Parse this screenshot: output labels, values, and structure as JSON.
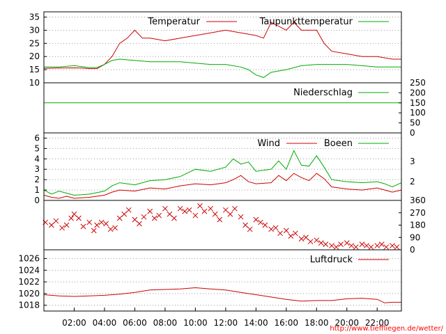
{
  "credit": "http://www.tiefflie­gen.de/wetter/",
  "colors": {
    "red": "#cc0000",
    "green": "#00aa00",
    "grid": "#999999",
    "credit": "#ff0000"
  },
  "x_axis": {
    "ticks": [
      "02:00",
      "04:00",
      "06:00",
      "08:00",
      "10:00",
      "12:00",
      "14:00",
      "16:00",
      "18:00",
      "20:00",
      "22:00"
    ],
    "range": [
      0.0,
      23.6
    ]
  },
  "chart_data": [
    {
      "type": "line",
      "id": "temperature",
      "ylim": [
        10,
        37
      ],
      "y_ticks": [
        "10",
        "15",
        "20",
        "25",
        "30",
        "35"
      ],
      "series": [
        {
          "name": "Temperatur",
          "color": "#cc0000",
          "x": [
            0,
            1,
            2,
            2.5,
            3,
            3.5,
            4,
            4.5,
            5,
            5.5,
            6,
            6.5,
            7,
            8,
            9,
            10,
            11,
            12,
            13,
            14,
            14.5,
            15,
            16,
            16.5,
            17,
            18,
            18.5,
            19,
            20,
            21,
            22,
            23,
            23.6
          ],
          "y": [
            15.5,
            15.6,
            15.7,
            15.6,
            15.4,
            15.4,
            17,
            20,
            25,
            27,
            30,
            27,
            27,
            26,
            27,
            28,
            29,
            30,
            29,
            28,
            27,
            33,
            30,
            33,
            30,
            30,
            25,
            22,
            21,
            20,
            20,
            19,
            19
          ]
        },
        {
          "name": "Taupunkttemperatur",
          "color": "#00aa00",
          "x": [
            0,
            1,
            2,
            3,
            3.5,
            4,
            4.5,
            5,
            6,
            7,
            8,
            9,
            10,
            11,
            12,
            13,
            13.5,
            14,
            14.5,
            15,
            16,
            17,
            18,
            19,
            20,
            21,
            22,
            23,
            23.6
          ],
          "y": [
            16,
            16,
            16.5,
            15.8,
            15.8,
            17,
            18.5,
            19,
            18.5,
            18,
            18,
            18,
            17.5,
            17,
            17,
            16,
            15,
            13,
            12,
            14,
            15,
            16.5,
            17,
            17,
            17,
            16.5,
            16,
            16,
            16
          ]
        }
      ]
    },
    {
      "type": "line",
      "id": "precipitation",
      "ylim": [
        0,
        250
      ],
      "y_ticks": [
        "0",
        "50",
        "100",
        "150",
        "200",
        "250"
      ],
      "series": [
        {
          "name": "Niederschlag",
          "color": "#00aa00",
          "x": [
            0,
            23.6
          ],
          "y": [
            150,
            150
          ]
        }
      ]
    },
    {
      "type": "line",
      "id": "wind",
      "ylim": [
        0,
        6.5
      ],
      "y_ticks": [
        "0",
        "1",
        "2",
        "3",
        "4",
        "5",
        "6"
      ],
      "right_ticks": [
        "2",
        "3"
      ],
      "series": [
        {
          "name": "Wind",
          "color": "#cc0000",
          "x": [
            0,
            0.5,
            1,
            1.5,
            2,
            3,
            4,
            4.5,
            5,
            6,
            7,
            8,
            9,
            10,
            11,
            12,
            12.5,
            13,
            13.5,
            14,
            15,
            15.5,
            16,
            16.5,
            17,
            17.5,
            18,
            18.5,
            19,
            20,
            21,
            22,
            22.5,
            23,
            23.6
          ],
          "y": [
            0.5,
            0.3,
            0.2,
            0.4,
            0.2,
            0.3,
            0.5,
            0.8,
            1,
            0.9,
            1.2,
            1.1,
            1.4,
            1.6,
            1.5,
            1.7,
            2,
            2.4,
            1.8,
            1.6,
            1.7,
            2.4,
            1.9,
            2.6,
            2.2,
            1.9,
            2.6,
            2.1,
            1.3,
            1.1,
            1,
            1.2,
            1,
            0.8,
            1
          ]
        },
        {
          "name": "Boeen",
          "color": "#00aa00",
          "x": [
            0,
            0.5,
            1,
            1.5,
            2,
            3,
            4,
            4.5,
            5,
            6,
            7,
            8,
            9,
            10,
            11,
            12,
            12.5,
            13,
            13.5,
            14,
            15,
            15.5,
            16,
            16.5,
            17,
            17.5,
            18,
            18.5,
            19,
            20,
            21,
            22,
            22.5,
            23,
            23.6
          ],
          "y": [
            1,
            0.6,
            0.9,
            0.7,
            0.5,
            0.6,
            0.9,
            1.4,
            1.7,
            1.5,
            1.9,
            2,
            2.3,
            3,
            2.8,
            3.2,
            4,
            3.5,
            3.7,
            2.8,
            3,
            3.8,
            3,
            4.8,
            3.4,
            3.3,
            4.3,
            3.2,
            2,
            1.8,
            1.7,
            1.8,
            1.6,
            1.3,
            1.7
          ]
        }
      ]
    },
    {
      "type": "scatter",
      "id": "wind_direction",
      "ylim": [
        0,
        360
      ],
      "y_ticks": [
        "0",
        "90",
        "180",
        "270",
        "360"
      ],
      "series": [
        {
          "name": "",
          "color": "#cc0000",
          "marker": "x",
          "x": [
            0.1,
            0.5,
            0.8,
            1.2,
            1.5,
            1.8,
            2,
            2.3,
            2.6,
            3,
            3.3,
            3.5,
            3.8,
            4.1,
            4.4,
            4.7,
            5,
            5.3,
            5.6,
            6,
            6.3,
            6.6,
            7,
            7.3,
            7.6,
            8,
            8.3,
            8.6,
            9,
            9.3,
            9.6,
            10,
            10.3,
            10.6,
            11,
            11.3,
            11.6,
            12,
            12.3,
            12.6,
            13,
            13.3,
            13.6,
            14,
            14.3,
            14.6,
            15,
            15.3,
            15.6,
            16,
            16.3,
            16.6,
            17,
            17.3,
            17.6,
            18,
            18.3,
            18.6,
            19,
            19.3,
            19.6,
            20,
            20.3,
            20.6,
            21,
            21.3,
            21.6,
            22,
            22.3,
            22.6,
            23,
            23.3
          ],
          "y": [
            200,
            180,
            210,
            160,
            180,
            230,
            260,
            230,
            170,
            200,
            140,
            180,
            200,
            190,
            150,
            160,
            230,
            260,
            290,
            220,
            190,
            240,
            280,
            230,
            250,
            300,
            260,
            230,
            300,
            280,
            290,
            250,
            320,
            280,
            300,
            260,
            220,
            290,
            260,
            300,
            240,
            180,
            150,
            220,
            200,
            180,
            150,
            160,
            120,
            140,
            100,
            120,
            80,
            90,
            60,
            70,
            50,
            40,
            30,
            20,
            40,
            50,
            30,
            20,
            40,
            30,
            20,
            30,
            40,
            20,
            30,
            20
          ]
        }
      ]
    },
    {
      "type": "line",
      "id": "pressure",
      "ylim": [
        1017,
        1027.5
      ],
      "y_ticks": [
        "1018",
        "1020",
        "1022",
        "1024",
        "1026"
      ],
      "series": [
        {
          "name": "Luftdruck",
          "color": "#cc0000",
          "x": [
            0,
            1,
            2,
            3,
            4,
            5,
            6,
            7,
            8,
            9,
            10,
            11,
            12,
            13,
            14,
            15,
            16,
            17,
            18,
            19,
            20,
            21,
            22,
            22.5,
            23,
            23.6
          ],
          "y": [
            1019.8,
            1019.6,
            1019.5,
            1019.6,
            1019.7,
            1019.9,
            1020.2,
            1020.6,
            1020.7,
            1020.8,
            1021,
            1020.8,
            1020.6,
            1020.2,
            1019.8,
            1019.4,
            1019,
            1018.7,
            1018.8,
            1018.8,
            1019.1,
            1019.2,
            1019,
            1018.4,
            1018.5,
            1018.5
          ]
        }
      ]
    }
  ]
}
